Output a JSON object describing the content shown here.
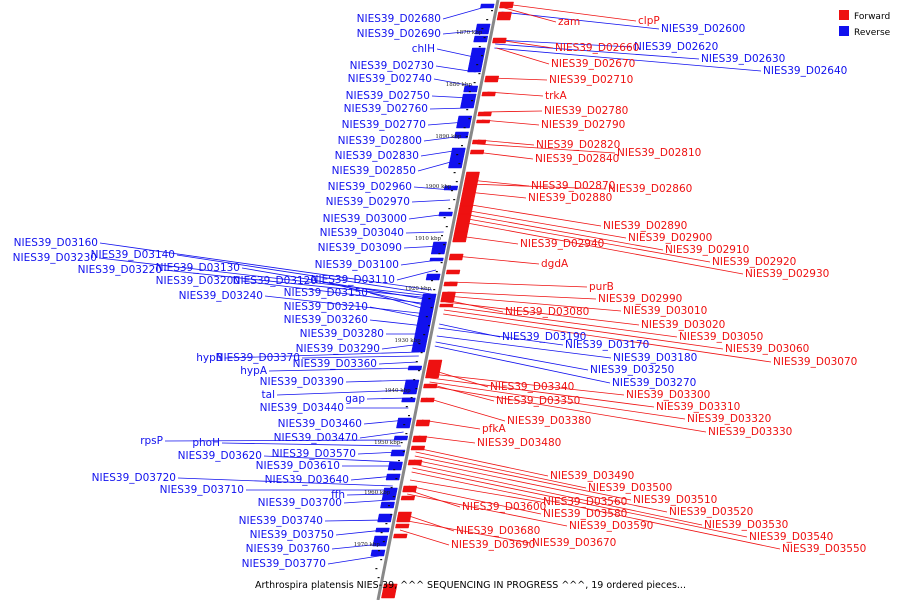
{
  "caption": "Arthrospira platensis NIES-39, ^^^ SEQUENCING IN PROGRESS ^^^, 19 ordered pieces...",
  "legend": [
    {
      "label": "Forward",
      "color": "#ee1111"
    },
    {
      "label": "Reverse",
      "color": "#1111ee"
    }
  ],
  "colors": {
    "forward": "#ee1111",
    "reverse": "#1111ee",
    "axis": "#888888"
  },
  "ticks": [
    "1870 kbp",
    "1880 kbp",
    "1890 kbp",
    "1900 kbp",
    "1910 kbp",
    "1920 kbp",
    "1930 kbp",
    "1940 kbp",
    "1950 kbp",
    "1960 kbp",
    "1970 kbp"
  ],
  "reverse_genes": [
    "NIES39_D02680",
    "NIES39_D02690",
    "chlH",
    "NIES39_D02730",
    "NIES39_D02740",
    "NIES39_D02750",
    "NIES39_D02760",
    "NIES39_D02770",
    "NIES39_D02800",
    "NIES39_D02830",
    "NIES39_D02850",
    "NIES39_D02960",
    "NIES39_D02970",
    "NIES39_D03000",
    "NIES39_D03040",
    "NIES39_D03090",
    "NIES39_D03100",
    "NIES39_D03110",
    "NIES39_D03160",
    "NIES39_D03140",
    "NIES39_D03230",
    "NIES39_D03220",
    "NIES39_D03130",
    "NIES39_D03200",
    "NIES39_D03120",
    "NIES39_D03150",
    "NIES39_D03240",
    "NIES39_D03210",
    "NIES39_D03260",
    "NIES39_D03280",
    "NIES39_D03290",
    "hypB",
    "NIES39_D03370",
    "NIES39_D03360",
    "hypA",
    "NIES39_D03390",
    "tal",
    "gap",
    "NIES39_D03440",
    "NIES39_D03460",
    "NIES39_D03470",
    "rpsP",
    "phoH",
    "NIES39_D03570",
    "NIES39_D03620",
    "NIES39_D03610",
    "NIES39_D03640",
    "NIES39_D03720",
    "NIES39_D03710",
    "ffh",
    "NIES39_D03700",
    "NIES39_D03740",
    "NIES39_D03750",
    "NIES39_D03760",
    "NIES39_D03770",
    "NIES39_D02600",
    "NIES39_D02620",
    "NIES39_D02630",
    "NIES39_D02640",
    "NIES39_D03190",
    "NIES39_D03170",
    "NIES39_D03180",
    "NIES39_D03250",
    "NIES39_D03270"
  ],
  "forward_genes": [
    "zam",
    "clpP",
    "NIES39_D02660",
    "NIES39_D02670",
    "NIES39_D02710",
    "trkA",
    "NIES39_D02780",
    "NIES39_D02790",
    "NIES39_D02820",
    "NIES39_D02810",
    "NIES39_D02840",
    "NIES39_D02870",
    "NIES39_D02860",
    "NIES39_D02880",
    "NIES39_D02890",
    "NIES39_D02900",
    "NIES39_D02940",
    "NIES39_D02910",
    "NIES39_D02920",
    "dgdA",
    "NIES39_D02930",
    "purB",
    "NIES39_D02990",
    "NIES39_D03080",
    "NIES39_D03010",
    "NIES39_D03020",
    "NIES39_D03050",
    "NIES39_D03060",
    "NIES39_D03070",
    "NIES39_D03340",
    "NIES39_D03300",
    "NIES39_D03350",
    "NIES39_D03310",
    "NIES39_D03380",
    "NIES39_D03320",
    "pfkA",
    "NIES39_D03330",
    "NIES39_D03480",
    "NIES39_D03490",
    "NIES39_D03500",
    "NIES39_D03510",
    "NIES39_D03560",
    "NIES39_D03520",
    "NIES39_D03600",
    "NIES39_D03580",
    "NIES39_D03530",
    "NIES39_D03590",
    "NIES39_D03540",
    "NIES39_D03680",
    "NIES39_D03670",
    "NIES39_D03550",
    "NIES39_D03690"
  ]
}
